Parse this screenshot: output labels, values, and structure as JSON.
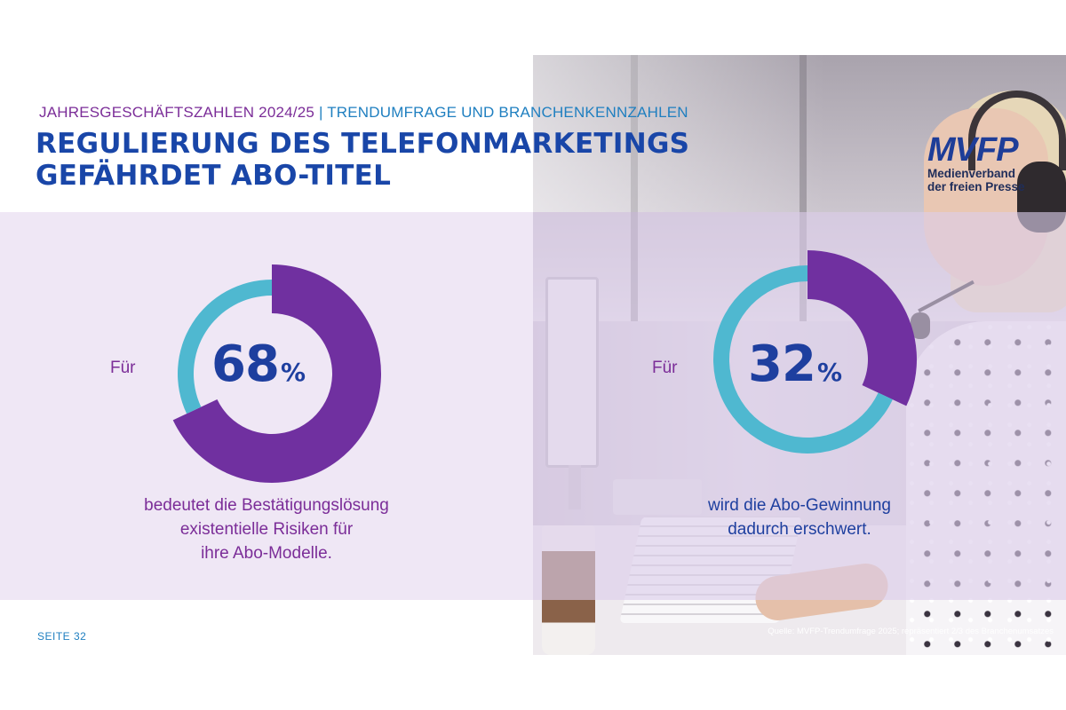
{
  "header": {
    "kicker_primary": "JAHRESGESCHÄFTSZAHLEN 2024/25",
    "kicker_separator": "|",
    "kicker_secondary": "TRENDUMFRAGE UND BRANCHENKENNZAHLEN",
    "title_line1": "REGULIERUNG DES TELEFONMARKETINGS",
    "title_line2": "GEFÄHRDET ABO-TITEL"
  },
  "logo": {
    "mark": "MVFP",
    "line1": "Medienverband",
    "line2": "der freien Presse"
  },
  "colors": {
    "purple": "#7030a0",
    "cyan": "#4fb8d0",
    "navy": "#1e3f9f",
    "text_purple": "#7b2d98"
  },
  "chart_data": [
    {
      "type": "pie",
      "variant": "donut",
      "slices": [
        {
          "value": 68,
          "color": "#7030a0"
        },
        {
          "value": 32,
          "color": "#4fb8d0"
        }
      ],
      "prefix": "Für",
      "value_label": "68",
      "unit": "%",
      "caption": [
        "bedeutet die Bestätigungslösung",
        "existentielle Risiken für",
        "ihre Abo-Modelle."
      ]
    },
    {
      "type": "pie",
      "variant": "donut",
      "slices": [
        {
          "value": 32,
          "color": "#7030a0"
        },
        {
          "value": 68,
          "color": "#4fb8d0"
        }
      ],
      "prefix": "Für",
      "value_label": "32",
      "unit": "%",
      "caption": [
        "wird die Abo-Gewinnung",
        "dadurch erschwert."
      ]
    }
  ],
  "footer": {
    "page": "SEITE 32",
    "source": "Quelle: MVFP-Trendumfrage 2025; repräsentiert 2/3 des Branchenumsatzes"
  }
}
